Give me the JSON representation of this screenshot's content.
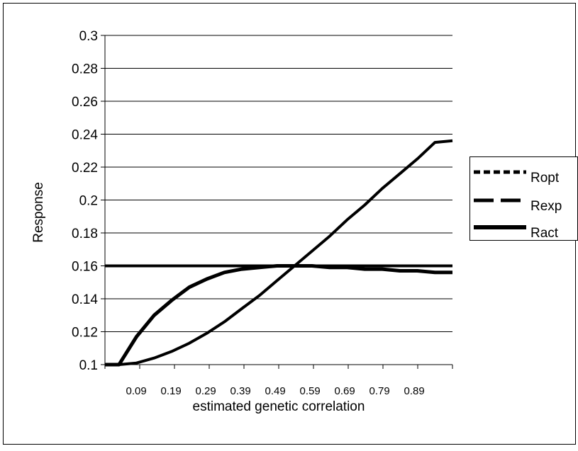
{
  "chart_data": {
    "type": "line",
    "title": "",
    "xlabel": "estimated genetic correlation",
    "ylabel": "Response",
    "ylim": [
      0.1,
      0.3
    ],
    "xlim": [
      0,
      0.99
    ],
    "yticks": [
      "0.1",
      "0.12",
      "0.14",
      "0.16",
      "0.18",
      "0.2",
      "0.22",
      "0.24",
      "0.26",
      "0.28",
      "0.3"
    ],
    "xticks": [
      "0.09",
      "0.19",
      "0.29",
      "0.39",
      "0.49",
      "0.59",
      "0.69",
      "0.79",
      "0.89"
    ],
    "grid": "horizontal",
    "legend_position": "right",
    "series": [
      {
        "name": "Ropt",
        "style": "dotted",
        "x": [
          0,
          0.99
        ],
        "y": [
          0.16,
          0.16
        ]
      },
      {
        "name": "Rexp",
        "style": "dashed",
        "x": [
          0,
          0.04,
          0.09,
          0.14,
          0.19,
          0.24,
          0.29,
          0.34,
          0.39,
          0.44,
          0.49,
          0.54,
          0.59,
          0.64,
          0.69,
          0.74,
          0.79,
          0.84,
          0.89,
          0.94,
          0.99
        ],
        "y": [
          0.1,
          0.1,
          0.101,
          0.104,
          0.108,
          0.113,
          0.119,
          0.126,
          0.134,
          0.142,
          0.151,
          0.16,
          0.169,
          0.178,
          0.188,
          0.197,
          0.207,
          0.216,
          0.225,
          0.235,
          0.236
        ]
      },
      {
        "name": "Ract",
        "style": "solid",
        "x": [
          0,
          0.04,
          0.09,
          0.14,
          0.19,
          0.24,
          0.29,
          0.34,
          0.39,
          0.44,
          0.49,
          0.54,
          0.59,
          0.64,
          0.69,
          0.74,
          0.79,
          0.84,
          0.89,
          0.94,
          0.99
        ],
        "y": [
          0.1,
          0.1,
          0.117,
          0.13,
          0.139,
          0.147,
          0.152,
          0.156,
          0.158,
          0.159,
          0.16,
          0.16,
          0.16,
          0.159,
          0.159,
          0.158,
          0.158,
          0.157,
          0.157,
          0.156,
          0.156
        ]
      }
    ]
  }
}
